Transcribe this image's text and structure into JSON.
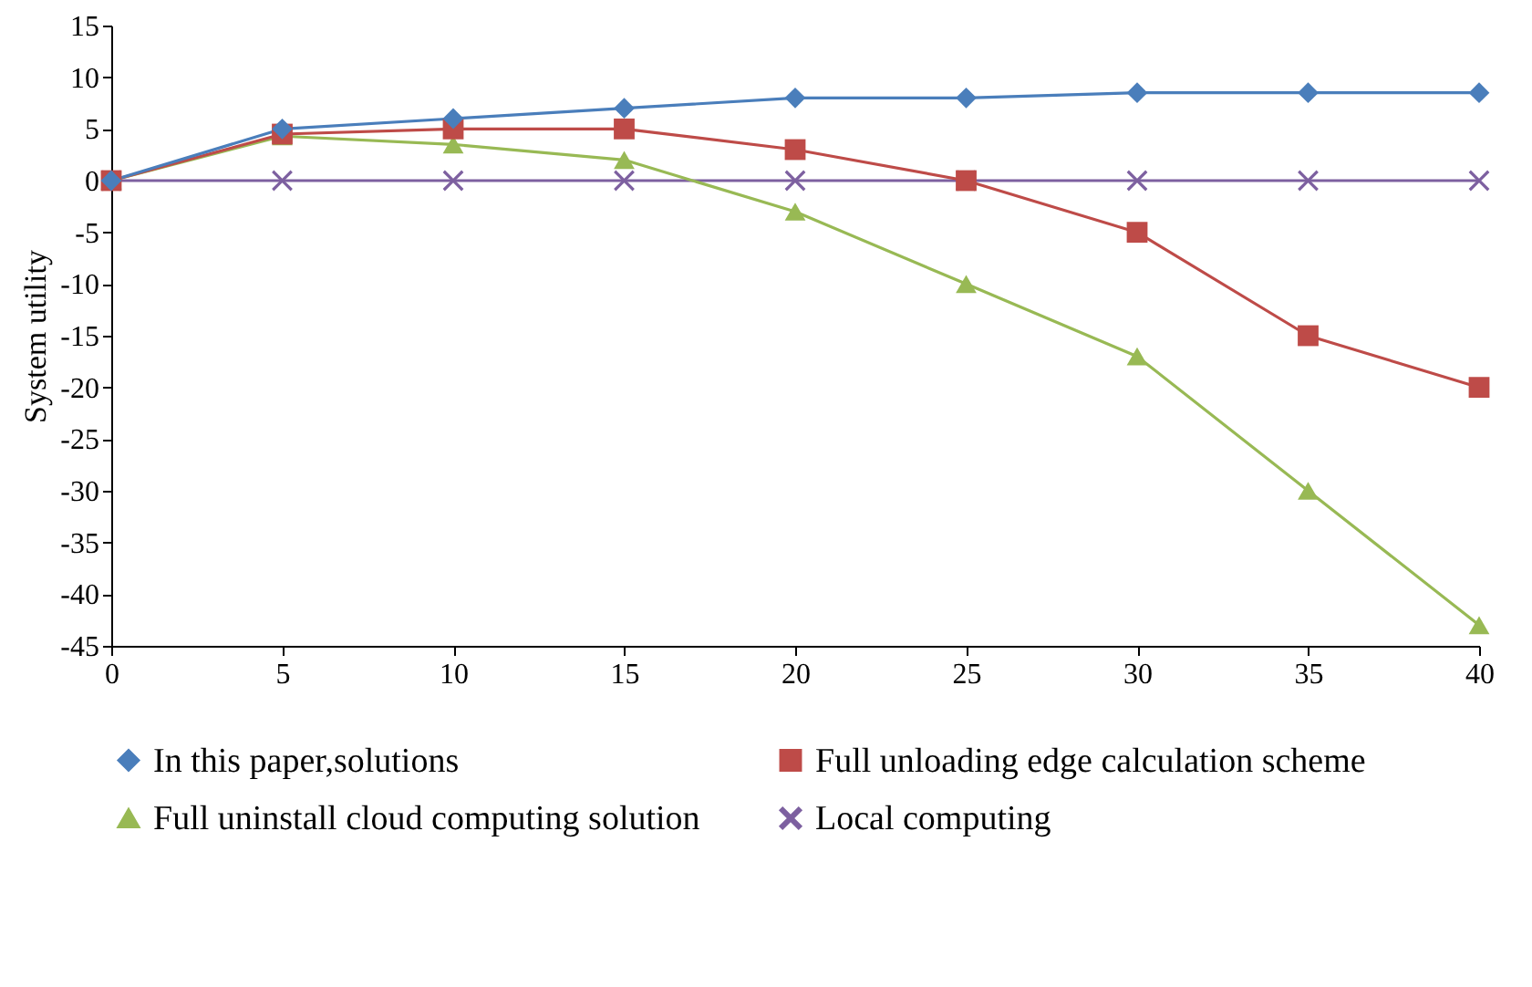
{
  "chart_data": {
    "type": "line",
    "ylabel": "System utility",
    "x": [
      0,
      5,
      10,
      15,
      20,
      25,
      30,
      35,
      40
    ],
    "xlim": [
      0,
      40
    ],
    "xticks": [
      0,
      5,
      10,
      15,
      20,
      25,
      30,
      35,
      40
    ],
    "ylim": [
      -45,
      15
    ],
    "yticks": [
      -45,
      -40,
      -35,
      -30,
      -25,
      -20,
      -15,
      -10,
      -5,
      0,
      5,
      10,
      15
    ],
    "grid": false,
    "legend": "bottom",
    "series": [
      {
        "name": "In this paper,solutions",
        "color": "#4a7ebb",
        "marker": "diamond",
        "values": [
          0,
          5,
          6,
          7,
          8,
          8,
          8.5,
          8.5,
          8.5
        ]
      },
      {
        "name": "Full unloading edge calculation scheme",
        "color": "#be4b48",
        "marker": "square",
        "values": [
          0,
          4.5,
          5,
          5,
          3,
          0,
          -5,
          -15,
          -20
        ]
      },
      {
        "name": "Full uninstall cloud computing solution",
        "color": "#98b954",
        "marker": "triangle",
        "values": [
          0,
          4.3,
          3.5,
          2,
          -3,
          -10,
          -17,
          -30,
          -43
        ]
      },
      {
        "name": "Local computing",
        "color": "#7d60a0",
        "marker": "cross",
        "values": [
          0,
          0,
          0,
          0,
          0,
          0,
          0,
          0,
          0
        ]
      }
    ]
  }
}
